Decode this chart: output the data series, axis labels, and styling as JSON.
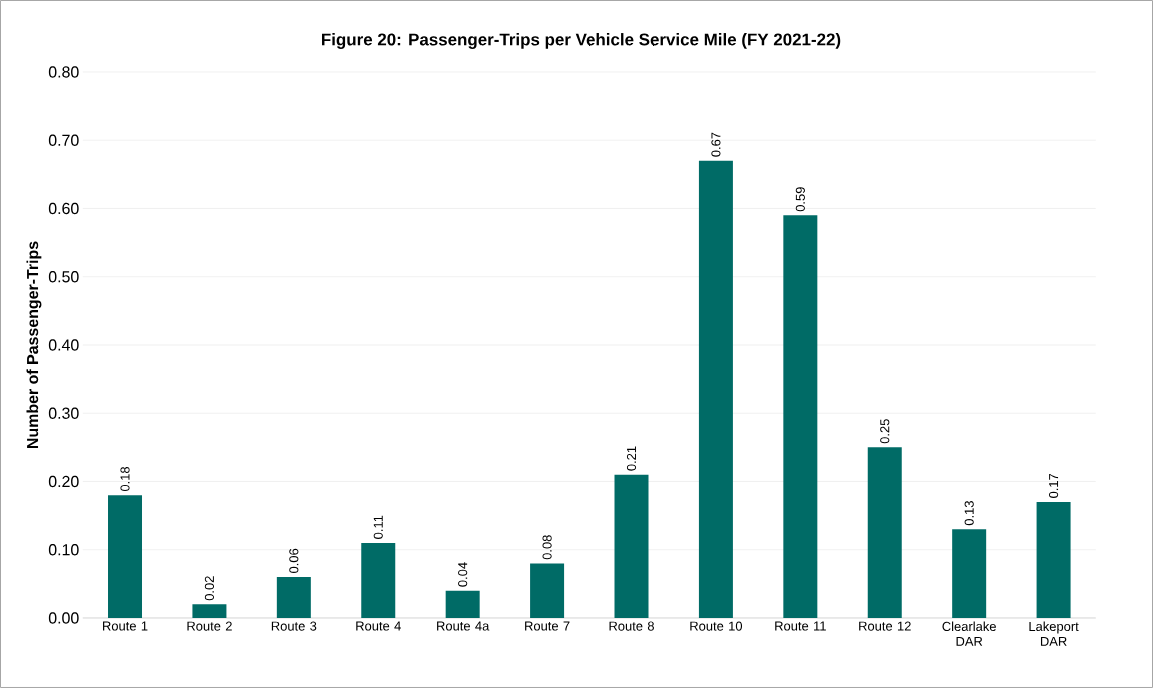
{
  "chart_data": {
    "type": "bar",
    "title": "Figure 20: Passenger-Trips per Vehicle Service Mile (FY 2021-22)",
    "ylabel": "Number of Passenger-Trips",
    "categories": [
      "Route 1",
      "Route 2",
      "Route 3",
      "Route 4",
      "Route 4a",
      "Route 7",
      "Route 8",
      "Route 10",
      "Route 11",
      "Route 12",
      "Clearlake DAR",
      "Lakeport DAR"
    ],
    "values": [
      0.18,
      0.02,
      0.06,
      0.11,
      0.04,
      0.08,
      0.21,
      0.67,
      0.59,
      0.25,
      0.13,
      0.17
    ],
    "color": "#006b66",
    "ylim": [
      0,
      0.8
    ],
    "yticks": [
      {
        "value": 0,
        "label": "0.00"
      },
      {
        "value": 0.1,
        "label": "0.10"
      },
      {
        "value": 0.2,
        "label": "0.20"
      },
      {
        "value": 0.3,
        "label": "0.30"
      },
      {
        "value": 0.4,
        "label": "0.40"
      },
      {
        "value": 0.5,
        "label": "0.50"
      },
      {
        "value": 0.6,
        "label": "0.60"
      },
      {
        "value": 0.7,
        "label": "0.70"
      },
      {
        "value": 0.8,
        "label": "0.80"
      }
    ],
    "grid": "y",
    "data_labels": true
  }
}
